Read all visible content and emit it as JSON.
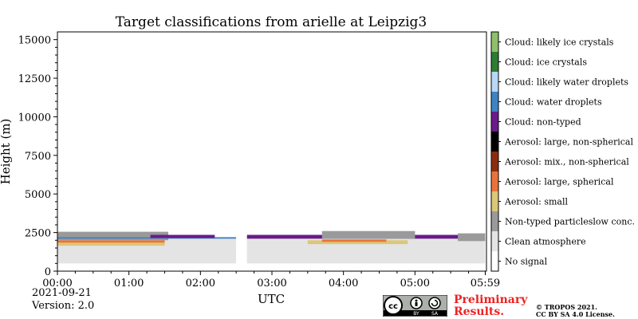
{
  "chart_data": {
    "type": "heatmap",
    "title": "Target classifications from arielle at Leipzig3",
    "xlabel": "UTC",
    "ylabel": "Height (m)",
    "ylim": [
      0,
      15500
    ],
    "xlim_hours": [
      0,
      6
    ],
    "yticks": [
      0,
      2500,
      5000,
      7500,
      10000,
      12500,
      15000
    ],
    "yticks_labels": [
      "0",
      "2500",
      "5000",
      "7500",
      "10000",
      "12500",
      "15000"
    ],
    "xticks_hours": [
      0,
      1,
      2,
      3,
      4,
      5,
      5.983
    ],
    "xticks_labels": [
      "00:00",
      "01:00",
      "02:00",
      "03:00",
      "04:00",
      "05:00",
      "05:59"
    ],
    "data_gap_hours": [
      2.5,
      2.65
    ],
    "legend_position": "right",
    "classes": [
      {
        "label": "Cloud: likely ice crystals",
        "color": "#8ec06c"
      },
      {
        "label": "Cloud: ice crystals",
        "color": "#2e7d32"
      },
      {
        "label": "Cloud: likely water droplets",
        "color": "#b8d8f4"
      },
      {
        "label": "Cloud: water droplets",
        "color": "#3f83c4"
      },
      {
        "label": "Cloud: non-typed",
        "color": "#6a1b8a"
      },
      {
        "label": "Aerosol: large, non-spherical",
        "color": "#000000"
      },
      {
        "label": "Aerosol: mix., non-spherical",
        "color": "#8b2c10"
      },
      {
        "label": "Aerosol: large, spherical",
        "color": "#e8743b"
      },
      {
        "label": "Aerosol: small",
        "color": "#dcc678"
      },
      {
        "label": "Non-typed particleslow conc.",
        "color": "#9a9a9a"
      },
      {
        "label": "Clean atmosphere",
        "color": "#e4e4e4"
      },
      {
        "label": "No signal",
        "color": "#ffffff"
      }
    ],
    "layers": [
      {
        "class": "Clean atmosphere",
        "from_h": 0,
        "to_h": 2.5,
        "bottom_m": 0,
        "top_m": 2200
      },
      {
        "class": "Clean atmosphere",
        "from_h": 2.65,
        "to_h": 5.983,
        "bottom_m": 0,
        "top_m": 2200
      },
      {
        "class": "No signal",
        "from_h": 0,
        "to_h": 2.5,
        "bottom_m": 0,
        "top_m": 500
      },
      {
        "class": "No signal",
        "from_h": 2.65,
        "to_h": 5.983,
        "bottom_m": 0,
        "top_m": 500
      },
      {
        "class": "Non-typed particleslow conc.",
        "from_h": 0,
        "to_h": 1.55,
        "bottom_m": 2000,
        "top_m": 2550
      },
      {
        "class": "Aerosol: small",
        "from_h": 0,
        "to_h": 1.5,
        "bottom_m": 1650,
        "top_m": 1950
      },
      {
        "class": "Aerosol: large, spherical",
        "from_h": 0,
        "to_h": 1.5,
        "bottom_m": 1850,
        "top_m": 2000
      },
      {
        "class": "Cloud: water droplets",
        "from_h": 0,
        "to_h": 2.5,
        "bottom_m": 2100,
        "top_m": 2200
      },
      {
        "class": "Cloud: non-typed",
        "from_h": 1.3,
        "to_h": 2.2,
        "bottom_m": 2150,
        "top_m": 2350
      },
      {
        "class": "Cloud: non-typed",
        "from_h": 2.65,
        "to_h": 5.9,
        "bottom_m": 2100,
        "top_m": 2350
      },
      {
        "class": "Non-typed particleslow conc.",
        "from_h": 3.7,
        "to_h": 5.0,
        "bottom_m": 2100,
        "top_m": 2600
      },
      {
        "class": "Aerosol: small",
        "from_h": 3.5,
        "to_h": 4.9,
        "bottom_m": 1750,
        "top_m": 2000
      },
      {
        "class": "Aerosol: large, spherical",
        "from_h": 3.7,
        "to_h": 4.6,
        "bottom_m": 1900,
        "top_m": 2050
      },
      {
        "class": "Non-typed particleslow conc.",
        "from_h": 5.6,
        "to_h": 5.983,
        "bottom_m": 1950,
        "top_m": 2450
      }
    ]
  },
  "footer": {
    "date": "2021-09-21",
    "version": "Version: 2.0",
    "preliminary_line1": "Preliminary",
    "preliminary_line2": "Results.",
    "copyright_line1": "© TROPOS 2021.",
    "copyright_line2": "CC BY SA 4.0 License.",
    "license_badge": {
      "label_by": "BY",
      "label_sa": "SA",
      "icon": "cc-by-sa-icon"
    }
  }
}
